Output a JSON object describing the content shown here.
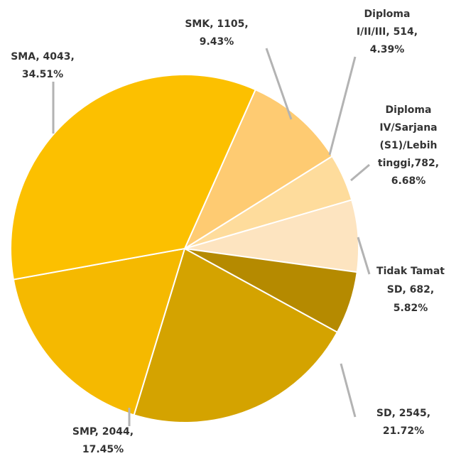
{
  "chart_data": {
    "type": "pie",
    "values": [
      1105,
      514,
      782,
      682,
      2545,
      2044,
      4043
    ],
    "labels": [
      [
        "SMK, 1105,",
        "9.43%"
      ],
      [
        "Diploma",
        "I/II/III, 514,",
        "4.39%"
      ],
      [
        "Diploma",
        "IV/Sarjana",
        "(S1)/Lebih",
        "tinggi,782,",
        "6.68%"
      ],
      [
        "Tidak Tamat",
        "SD, 682,",
        "5.82%"
      ],
      [
        "SD, 2545,",
        "21.72%"
      ],
      [
        "SMP, 2044,",
        "17.45%"
      ],
      [
        "SMA, 4043,",
        "34.51%"
      ]
    ],
    "colors": [
      "#fecb72",
      "#fedc9c",
      "#fde4c0",
      "#b58a00",
      "#d4a300",
      "#f5b900",
      "#fcc000"
    ]
  }
}
